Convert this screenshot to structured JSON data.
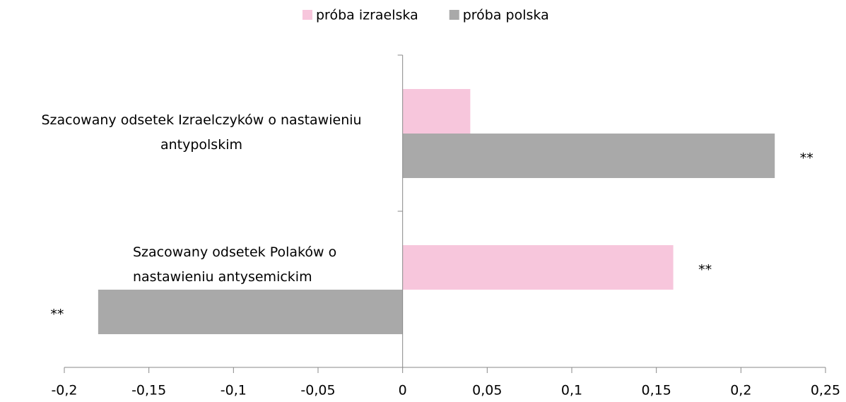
{
  "chart_data": {
    "type": "bar",
    "orientation": "horizontal",
    "categories": [
      "Szacowany odsetek Izraelczyków o nastawieniu antypolskim",
      "Szacowany odsetek Polaków o nastawieniu antysemickim"
    ],
    "series": [
      {
        "name": "próba izraelska",
        "color": "#f7c6dc",
        "values": [
          0.04,
          0.16
        ],
        "markers": [
          null,
          "**"
        ]
      },
      {
        "name": "próba polska",
        "color": "#a9a9a9",
        "values": [
          0.22,
          -0.18
        ],
        "markers": [
          "**",
          "**"
        ]
      }
    ],
    "xlim": [
      -0.2,
      0.25
    ],
    "xticks": [
      {
        "value": -0.2,
        "label": "-0,2"
      },
      {
        "value": -0.15,
        "label": "-0,15"
      },
      {
        "value": -0.1,
        "label": "-0,1"
      },
      {
        "value": -0.05,
        "label": "-0,05"
      },
      0,
      {
        "value": 0.05,
        "label": "0,05"
      },
      {
        "value": 0.1,
        "label": "0,1"
      },
      {
        "value": 0.15,
        "label": "0,15"
      },
      {
        "value": 0.2,
        "label": "0,2"
      },
      {
        "value": 0.25,
        "label": "0,25"
      }
    ],
    "legend": "top",
    "grid": false
  }
}
